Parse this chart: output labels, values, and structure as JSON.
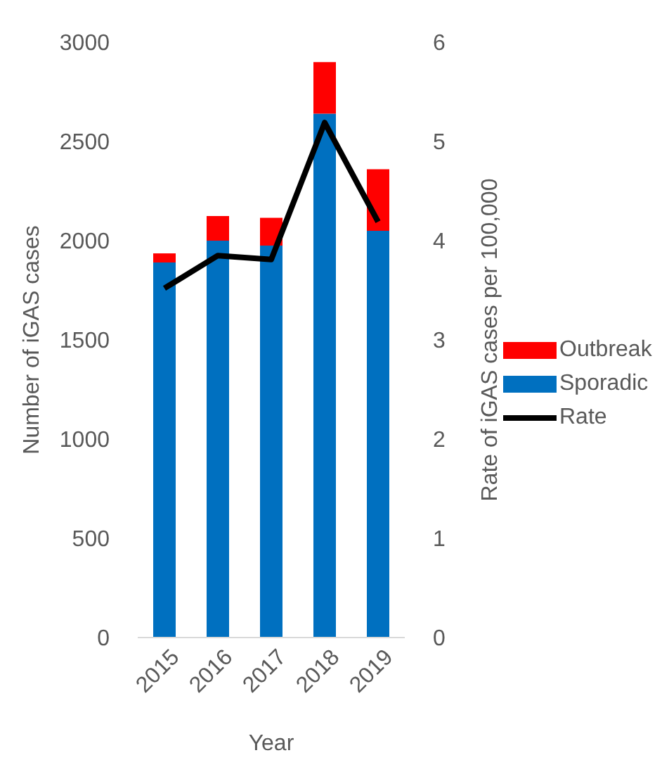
{
  "chart_data": {
    "type": "bar",
    "stacked": true,
    "xlabel": "Year",
    "ylabel": "Number of iGAS cases",
    "y2label": "Rate of iGAS cases per 100,000",
    "categories": [
      "2015",
      "2016",
      "2017",
      "2018",
      "2019"
    ],
    "series": [
      {
        "name": "Sporadic",
        "color": "#0070c0",
        "values": [
          1890,
          2000,
          1975,
          2640,
          2050
        ]
      },
      {
        "name": "Outbreak",
        "color": "#ff0000",
        "values": [
          46,
          124,
          140,
          260,
          310
        ]
      },
      {
        "name": "Rate",
        "type": "line",
        "axis": "y2",
        "color": "#000000",
        "values": [
          3.52,
          3.85,
          3.81,
          5.19,
          4.19
        ]
      }
    ],
    "ylim": [
      0,
      3000
    ],
    "yticks": [
      0,
      500,
      1000,
      1500,
      2000,
      2500,
      3000
    ],
    "y2lim": [
      0,
      6
    ],
    "y2ticks": [
      0,
      1,
      2,
      3,
      4,
      5,
      6
    ],
    "grid": false,
    "legend": "right",
    "marker": "none"
  }
}
